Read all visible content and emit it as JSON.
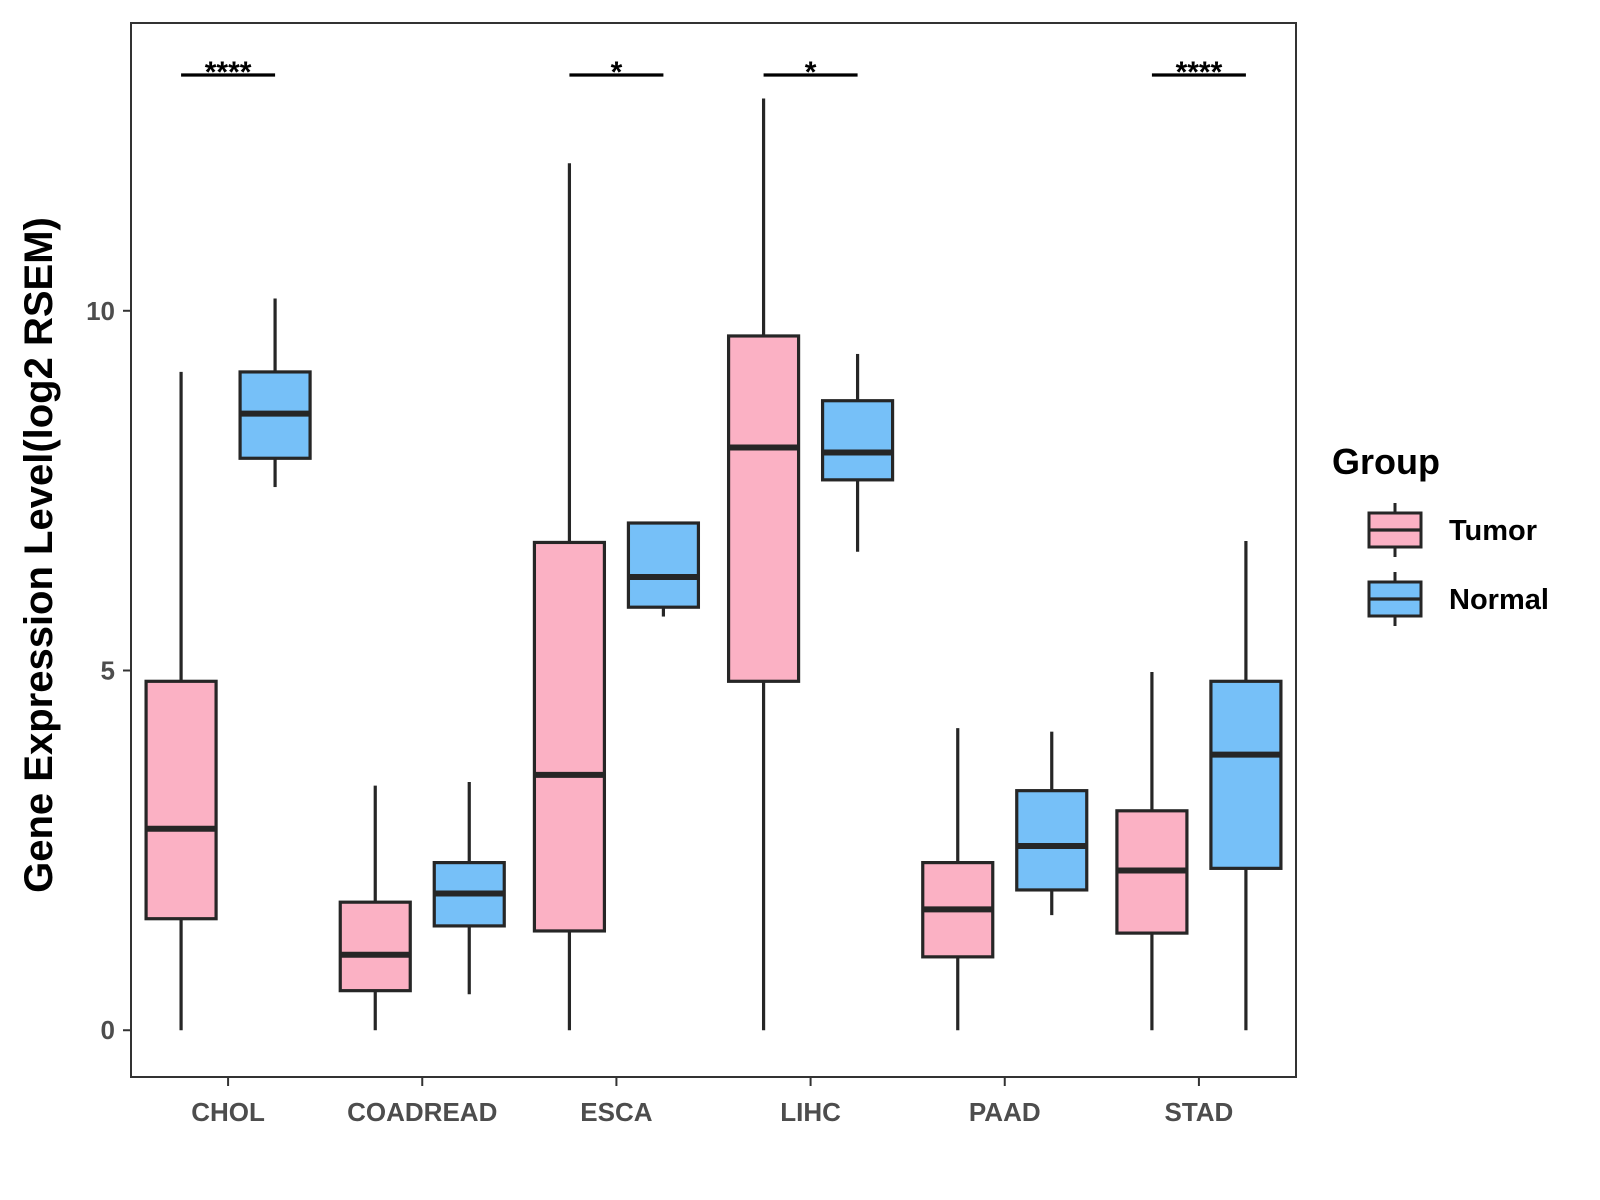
{
  "chart_data": {
    "type": "boxplot",
    "title": "",
    "xlabel": "",
    "ylabel": "Gene Expression Level(log2 RSEM)",
    "ylim": [
      -0.65,
      14.0
    ],
    "yticks": [
      0,
      5,
      10
    ],
    "grid": false,
    "legend": {
      "title": "Group",
      "position": "right",
      "entries": [
        {
          "name": "Tumor",
          "color": "#FBB1C4"
        },
        {
          "name": "Normal",
          "color": "#76C0F8"
        }
      ]
    },
    "categories": [
      "CHOL",
      "COADREAD",
      "ESCA",
      "LIHC",
      "PAAD",
      "STAD"
    ],
    "series": [
      {
        "name": "Tumor",
        "color": "#FBB1C4",
        "boxes": [
          {
            "min": 0.0,
            "q1": 1.55,
            "median": 2.8,
            "q3": 4.85,
            "max": 9.15
          },
          {
            "min": 0.0,
            "q1": 0.55,
            "median": 1.05,
            "q3": 1.78,
            "max": 3.4
          },
          {
            "min": 0.0,
            "q1": 1.38,
            "median": 3.55,
            "q3": 6.78,
            "max": 12.05
          },
          {
            "min": 0.0,
            "q1": 4.85,
            "median": 8.1,
            "q3": 9.65,
            "max": 12.95
          },
          {
            "min": 0.0,
            "q1": 1.02,
            "median": 1.68,
            "q3": 2.33,
            "max": 4.2
          },
          {
            "min": 0.0,
            "q1": 1.35,
            "median": 2.22,
            "q3": 3.05,
            "max": 4.98
          }
        ]
      },
      {
        "name": "Normal",
        "color": "#76C0F8",
        "boxes": [
          {
            "min": 7.55,
            "q1": 7.95,
            "median": 8.57,
            "q3": 9.15,
            "max": 10.17
          },
          {
            "min": 0.5,
            "q1": 1.45,
            "median": 1.9,
            "q3": 2.33,
            "max": 3.45
          },
          {
            "min": 5.75,
            "q1": 5.88,
            "median": 6.3,
            "q3": 7.05,
            "max": 7.05
          },
          {
            "min": 6.65,
            "q1": 7.65,
            "median": 8.03,
            "q3": 8.75,
            "max": 9.4
          },
          {
            "min": 1.6,
            "q1": 1.95,
            "median": 2.56,
            "q3": 3.33,
            "max": 4.15
          },
          {
            "min": 0.0,
            "q1": 2.25,
            "median": 3.83,
            "q3": 4.85,
            "max": 6.8
          }
        ]
      }
    ],
    "significance": [
      {
        "category": "CHOL",
        "label": "****"
      },
      {
        "category": "ESCA",
        "label": "*"
      },
      {
        "category": "LIHC",
        "label": "*"
      },
      {
        "category": "STAD",
        "label": "****"
      }
    ]
  }
}
